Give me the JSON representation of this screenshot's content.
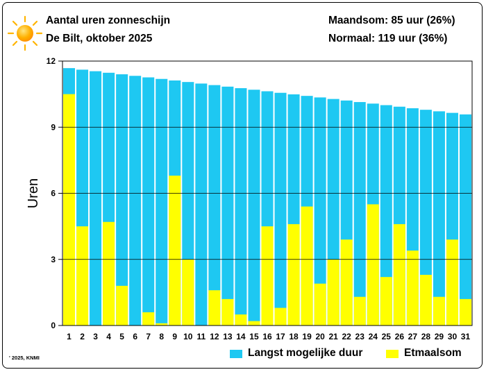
{
  "header": {
    "title": "Aantal uren zonneschijn",
    "subtitle": "De Bilt, oktober 2025",
    "month_sum": "Maandsom: 85 uur (26%)",
    "normal": "Normaal: 119 uur (36%)"
  },
  "footer": {
    "copyright": "' 2025, KNMI"
  },
  "colors": {
    "possible": "#1ec8f2",
    "actual": "#ffff00",
    "sun": "#ffb400"
  },
  "chart_data": {
    "type": "bar",
    "ylabel": "Uren",
    "ylim": [
      0,
      12
    ],
    "yticks": [
      0,
      3,
      6,
      9,
      12
    ],
    "grid": true,
    "categories": [
      "1",
      "2",
      "3",
      "4",
      "5",
      "6",
      "7",
      "8",
      "9",
      "10",
      "11",
      "12",
      "13",
      "14",
      "15",
      "16",
      "17",
      "18",
      "19",
      "20",
      "21",
      "22",
      "23",
      "24",
      "25",
      "26",
      "27",
      "28",
      "29",
      "30",
      "31"
    ],
    "series": [
      {
        "name": "Langst mogelijke duur",
        "color": "#1ec8f2",
        "values": [
          11.68,
          11.61,
          11.54,
          11.47,
          11.4,
          11.33,
          11.26,
          11.19,
          11.12,
          11.05,
          10.98,
          10.91,
          10.84,
          10.77,
          10.7,
          10.63,
          10.56,
          10.49,
          10.42,
          10.35,
          10.28,
          10.21,
          10.14,
          10.07,
          10.0,
          9.93,
          9.86,
          9.79,
          9.72,
          9.65,
          9.58
        ]
      },
      {
        "name": "Etmaalsom",
        "color": "#ffff00",
        "values": [
          10.5,
          4.5,
          0,
          4.7,
          1.8,
          0,
          0.6,
          0.1,
          6.8,
          3.0,
          0,
          1.6,
          1.2,
          0.5,
          0.2,
          4.5,
          0.8,
          4.6,
          5.4,
          1.9,
          3.0,
          3.9,
          1.3,
          5.5,
          2.2,
          4.6,
          3.4,
          2.3,
          1.3,
          3.9,
          1.2
        ]
      }
    ]
  }
}
